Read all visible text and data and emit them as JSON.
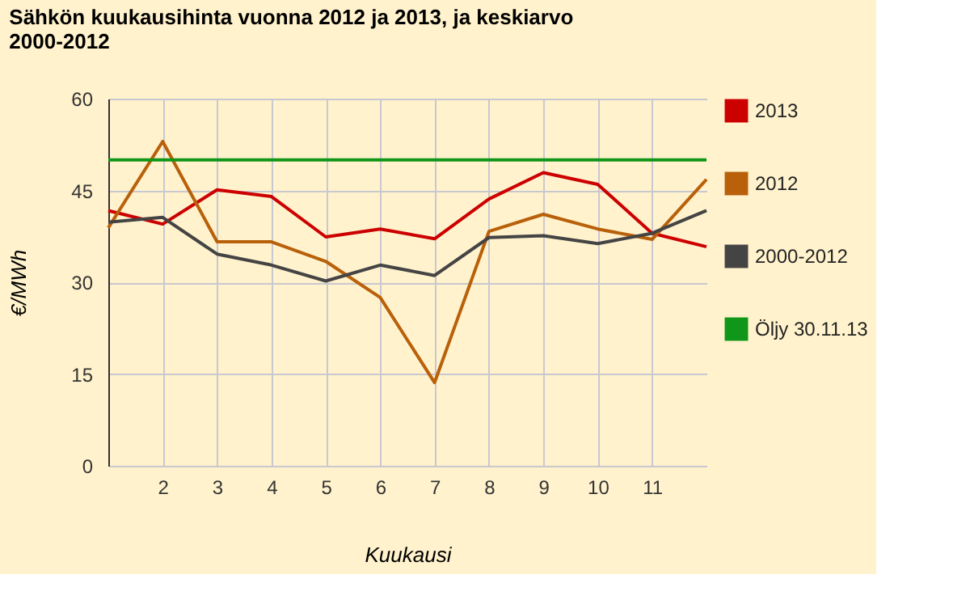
{
  "chart_data": {
    "type": "line",
    "title": "Sähkön kuukausihinta vuonna 2012 ja 2013, ja keskiarvo 2000-2012",
    "xlabel": "Kuukausi",
    "ylabel": "€/MWh",
    "x": [
      1,
      2,
      3,
      4,
      5,
      6,
      7,
      8,
      9,
      10,
      11,
      12
    ],
    "series": [
      {
        "name": "2013",
        "color": "#cc0000",
        "values": [
          41.7,
          39.5,
          45.1,
          44.0,
          37.4,
          38.7,
          37.1,
          43.6,
          47.9,
          46.0,
          38.0,
          35.8
        ]
      },
      {
        "name": "2012",
        "color": "#b8600a",
        "values": [
          38.9,
          53.0,
          36.6,
          36.6,
          33.4,
          27.5,
          13.6,
          38.3,
          41.1,
          38.7,
          37.0,
          46.8
        ]
      },
      {
        "name": "2000-2012",
        "color": "#444444",
        "values": [
          39.8,
          40.6,
          34.6,
          32.8,
          30.2,
          32.8,
          31.1,
          37.3,
          37.6,
          36.3,
          38.0,
          41.7
        ]
      },
      {
        "name": "Öljy 30.11.13",
        "color": "#109618",
        "values": [
          50,
          50,
          50,
          50,
          50,
          50,
          50,
          50,
          50,
          50,
          50,
          50
        ]
      }
    ],
    "xlim": [
      1,
      12
    ],
    "xticks": [
      2,
      3,
      4,
      5,
      6,
      7,
      8,
      9,
      10,
      11
    ],
    "ylim": [
      0,
      60
    ],
    "yticks": [
      0,
      15,
      30,
      45,
      60
    ],
    "grid": true,
    "legend": "right",
    "marker": "none",
    "line_style": "solid"
  }
}
